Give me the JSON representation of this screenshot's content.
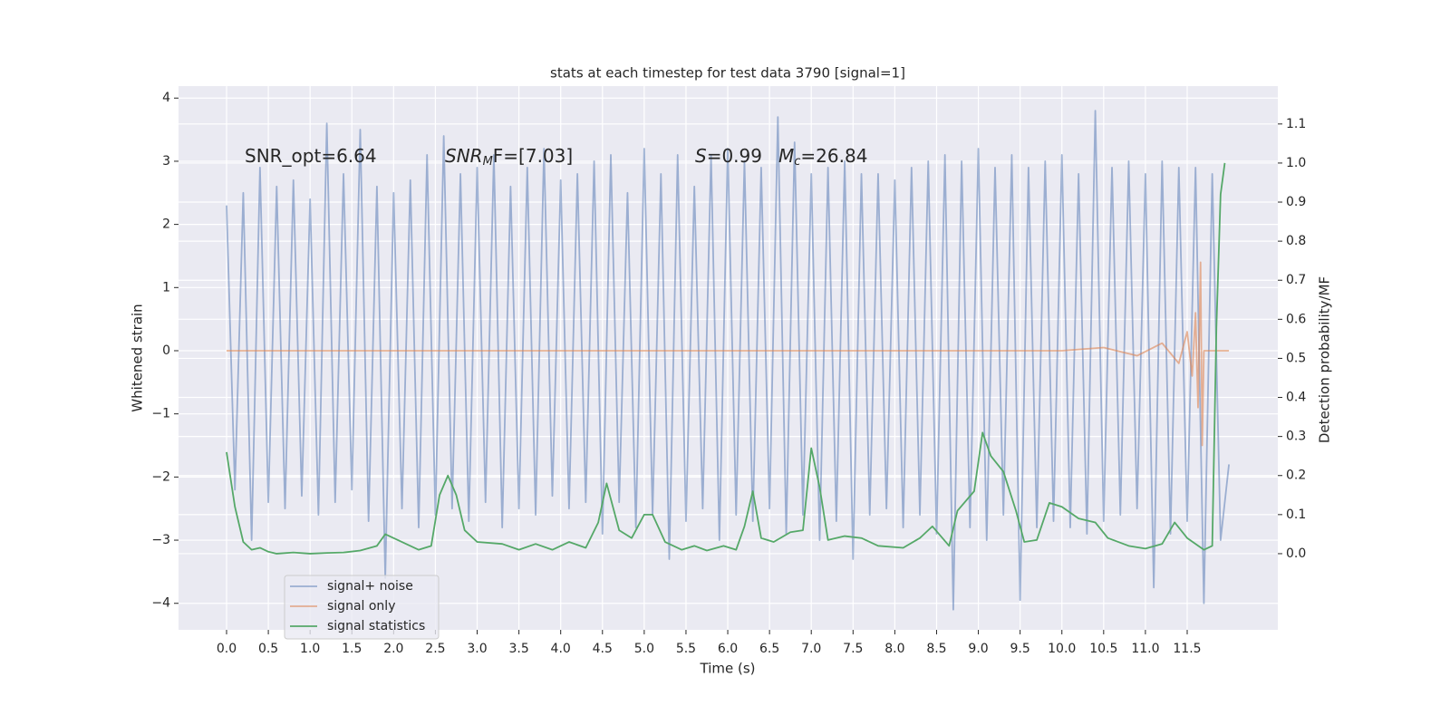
{
  "chart_data": {
    "type": "line",
    "title": "stats at each timestep for test data 3790 [signal=1]",
    "x_label": "Time (s)",
    "y_label": "Whitened strain",
    "y2_label": "Detection probability/MF",
    "annotations": [
      {
        "parts": [
          "SNR_opt=6.64"
        ]
      },
      {
        "parts": [
          "SNR",
          "M",
          "F=[7.03]"
        ]
      },
      {
        "parts": [
          "S",
          "=0.99"
        ]
      },
      {
        "parts": [
          "M",
          "c",
          "=26.84"
        ]
      }
    ],
    "grid": true,
    "legend": "lower left",
    "xlim": [
      -0.575,
      12.585
    ],
    "xticks": [
      {
        "value": 0,
        "label": "0.0"
      },
      0.5,
      {
        "value": 1,
        "label": "1.0"
      },
      1.5,
      {
        "value": 2,
        "label": "2.0"
      },
      2.5,
      {
        "value": 3,
        "label": "3.0"
      },
      3.5,
      {
        "value": 4,
        "label": "4.0"
      },
      4.5,
      {
        "value": 5,
        "label": "5.0"
      },
      5.5,
      {
        "value": 6,
        "label": "6.0"
      },
      6.5,
      {
        "value": 7,
        "label": "7.0"
      },
      7.5,
      {
        "value": 8,
        "label": "8.0"
      },
      8.5,
      {
        "value": 9,
        "label": "9.0"
      },
      9.5,
      {
        "value": 10,
        "label": "10.0"
      },
      10.5,
      {
        "value": 11,
        "label": "11.0"
      },
      11.5
    ],
    "ylim": [
      -4.42,
      4.19
    ],
    "yticks": [
      {
        "value": -4,
        "label": "−4"
      },
      {
        "value": -3,
        "label": "−3"
      },
      {
        "value": -2,
        "label": "−2"
      },
      {
        "value": -1,
        "label": "−1"
      },
      0,
      1,
      2,
      3,
      4
    ],
    "y2lim": [
      -0.195,
      1.197
    ],
    "y2ticks": [
      {
        "value": 0,
        "label": "0.0"
      },
      0.1,
      0.2,
      0.3,
      0.4,
      0.5,
      0.6,
      0.7,
      0.8,
      0.9,
      {
        "value": 1,
        "label": "1.0"
      },
      1.1
    ],
    "series": [
      {
        "name": "signal+ noise",
        "color": "#4c72b0",
        "opacity": 0.5,
        "x": [
          0,
          0.1,
          0.2,
          0.3,
          0.4,
          0.5,
          0.6,
          0.7,
          0.8,
          0.9,
          1,
          1.1,
          1.2,
          1.3,
          1.4,
          1.5,
          1.6,
          1.7,
          1.8,
          1.9,
          2,
          2.1,
          2.2,
          2.3,
          2.4,
          2.5,
          2.6,
          2.7,
          2.8,
          2.9,
          3,
          3.1,
          3.2,
          3.3,
          3.4,
          3.5,
          3.6,
          3.7,
          3.8,
          3.9,
          4,
          4.1,
          4.2,
          4.3,
          4.4,
          4.5,
          4.6,
          4.7,
          4.8,
          4.9,
          5,
          5.1,
          5.2,
          5.3,
          5.4,
          5.5,
          5.6,
          5.7,
          5.8,
          5.9,
          6,
          6.1,
          6.2,
          6.3,
          6.4,
          6.5,
          6.6,
          6.7,
          6.8,
          6.9,
          7,
          7.1,
          7.2,
          7.3,
          7.4,
          7.5,
          7.6,
          7.7,
          7.8,
          7.9,
          8,
          8.1,
          8.2,
          8.3,
          8.4,
          8.5,
          8.6,
          8.7,
          8.8,
          8.9,
          9,
          9.1,
          9.2,
          9.3,
          9.4,
          9.5,
          9.6,
          9.7,
          9.8,
          9.9,
          10,
          10.1,
          10.2,
          10.3,
          10.4,
          10.5,
          10.6,
          10.7,
          10.8,
          10.9,
          11,
          11.1,
          11.2,
          11.3,
          11.4,
          11.5,
          11.6,
          11.7,
          11.8,
          11.9,
          12
        ],
        "values": [
          2.3,
          -2.2,
          2.5,
          -3.0,
          2.9,
          -2.4,
          2.6,
          -2.5,
          2.7,
          -2.3,
          2.4,
          -2.6,
          3.6,
          -2.4,
          2.8,
          -2.2,
          3.5,
          -2.7,
          2.6,
          -3.6,
          2.5,
          -2.5,
          2.7,
          -2.8,
          3.1,
          -2.6,
          3.4,
          -2.5,
          2.8,
          -2.7,
          2.9,
          -2.4,
          3.1,
          -2.8,
          2.6,
          -2.5,
          2.9,
          -2.6,
          3.2,
          -2.3,
          2.7,
          -2.5,
          2.8,
          -2.4,
          3.0,
          -2.9,
          3.1,
          -2.4,
          2.5,
          -2.8,
          3.2,
          -2.6,
          2.8,
          -3.3,
          3.1,
          -2.7,
          2.6,
          -2.5,
          3.1,
          -3.0,
          3.2,
          -2.6,
          3.0,
          -2.7,
          2.9,
          -2.5,
          3.7,
          -2.9,
          3.3,
          -2.6,
          2.8,
          -3.0,
          2.9,
          -2.7,
          3.0,
          -3.3,
          2.8,
          -2.6,
          2.8,
          -2.5,
          2.7,
          -2.8,
          2.9,
          -2.6,
          3.0,
          -2.9,
          3.1,
          -4.1,
          3.0,
          -2.8,
          3.2,
          -3.0,
          2.9,
          -2.6,
          3.1,
          -3.95,
          2.9,
          -2.8,
          3.0,
          -2.7,
          3.1,
          -2.8,
          2.8,
          -2.9,
          3.8,
          -2.7,
          2.9,
          -2.6,
          3.0,
          -2.5,
          2.8,
          -3.75,
          3.0,
          -2.9,
          2.9,
          -2.7,
          2.9,
          -4.0,
          2.8,
          -3.0,
          -1.8
        ]
      },
      {
        "name": "signal only",
        "color": "#dd8452",
        "opacity": 0.6,
        "x": [
          0,
          10,
          10.5,
          10.9,
          11.2,
          11.4,
          11.5,
          11.56,
          11.6,
          11.63,
          11.66,
          11.68,
          11.7,
          12
        ],
        "values": [
          0,
          0,
          0.05,
          -0.08,
          0.12,
          -0.2,
          0.3,
          -0.4,
          0.6,
          -0.9,
          1.4,
          -1.5,
          0,
          0
        ]
      },
      {
        "name": "signal statistics",
        "color": "#55a868",
        "opacity": 1,
        "axis": "y2",
        "x": [
          0,
          0.1,
          0.2,
          0.3,
          0.4,
          0.5,
          0.6,
          0.8,
          1,
          1.2,
          1.4,
          1.6,
          1.8,
          1.9,
          2.1,
          2.3,
          2.45,
          2.55,
          2.65,
          2.75,
          2.85,
          3,
          3.3,
          3.5,
          3.7,
          3.9,
          4.1,
          4.3,
          4.45,
          4.55,
          4.7,
          4.85,
          5,
          5.1,
          5.25,
          5.45,
          5.6,
          5.75,
          5.95,
          6.1,
          6.2,
          6.3,
          6.4,
          6.55,
          6.75,
          6.9,
          7,
          7.1,
          7.2,
          7.4,
          7.6,
          7.8,
          8.1,
          8.3,
          8.45,
          8.65,
          8.75,
          8.95,
          9.05,
          9.15,
          9.3,
          9.45,
          9.55,
          9.7,
          9.85,
          10,
          10.2,
          10.4,
          10.55,
          10.8,
          11,
          11.2,
          11.35,
          11.5,
          11.7,
          11.8,
          11.85,
          11.9,
          11.95
        ],
        "values": [
          0.26,
          0.12,
          0.03,
          0.01,
          0.015,
          0.005,
          0,
          0.003,
          0,
          0.002,
          0.003,
          0.008,
          0.02,
          0.05,
          0.03,
          0.01,
          0.02,
          0.15,
          0.2,
          0.15,
          0.06,
          0.03,
          0.025,
          0.01,
          0.025,
          0.01,
          0.03,
          0.015,
          0.08,
          0.18,
          0.06,
          0.04,
          0.1,
          0.1,
          0.03,
          0.01,
          0.02,
          0.008,
          0.02,
          0.01,
          0.07,
          0.16,
          0.04,
          0.03,
          0.055,
          0.06,
          0.27,
          0.17,
          0.035,
          0.045,
          0.04,
          0.02,
          0.015,
          0.04,
          0.07,
          0.02,
          0.11,
          0.16,
          0.31,
          0.25,
          0.21,
          0.11,
          0.03,
          0.035,
          0.13,
          0.12,
          0.09,
          0.08,
          0.04,
          0.02,
          0.013,
          0.025,
          0.08,
          0.04,
          0.01,
          0.02,
          0.58,
          0.92,
          1.0
        ]
      }
    ]
  }
}
